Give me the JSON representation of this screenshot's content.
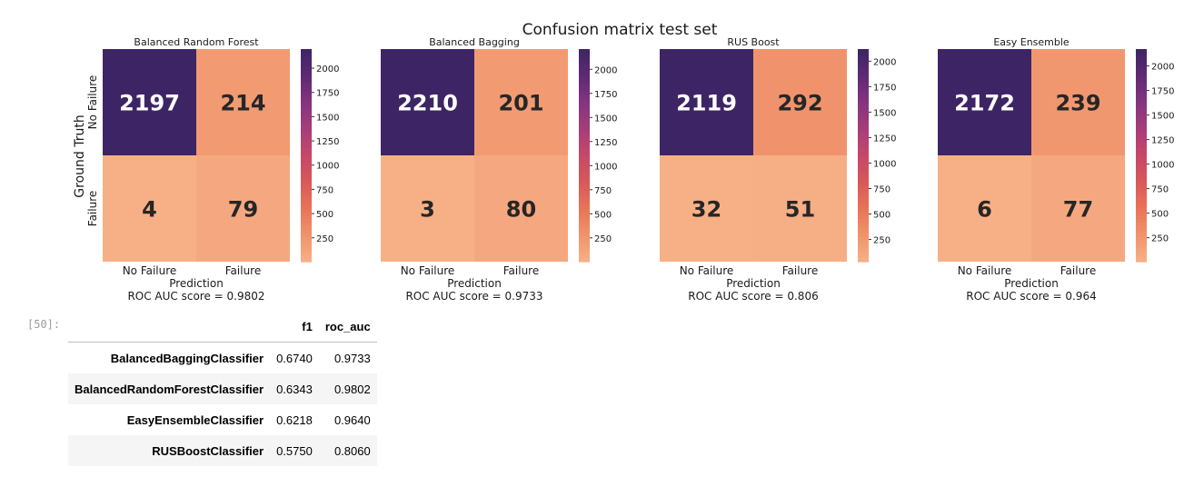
{
  "figure_title": "Confusion matrix test set",
  "chart_data": {
    "type": "heatmap",
    "ylabel": "Ground Truth",
    "xlabel": "Prediction",
    "row_labels": [
      "No Failure",
      "Failure"
    ],
    "col_labels": [
      "No Failure",
      "Failure"
    ],
    "colormap": [
      "#f7b086",
      "#f0936c",
      "#e97458",
      "#d95858",
      "#c6486a",
      "#a63d7a",
      "#84347f",
      "#5e2a73",
      "#3d2565"
    ],
    "panels": [
      {
        "title": "Balanced Random Forest",
        "matrix": [
          [
            2197,
            214
          ],
          [
            4,
            79
          ]
        ],
        "vmin": 4,
        "vmax": 2197,
        "colorbar_ticks": [
          250,
          500,
          750,
          1000,
          1250,
          1500,
          1750,
          2000
        ],
        "roc_label": "ROC AUC score = 0.9802"
      },
      {
        "title": "Balanced Bagging",
        "matrix": [
          [
            2210,
            201
          ],
          [
            3,
            80
          ]
        ],
        "vmin": 3,
        "vmax": 2210,
        "colorbar_ticks": [
          250,
          500,
          750,
          1000,
          1250,
          1500,
          1750,
          2000
        ],
        "roc_label": "ROC AUC score = 0.9733"
      },
      {
        "title": "RUS Boost",
        "matrix": [
          [
            2119,
            292
          ],
          [
            32,
            51
          ]
        ],
        "vmin": 32,
        "vmax": 2119,
        "colorbar_ticks": [
          250,
          500,
          750,
          1000,
          1250,
          1500,
          1750,
          2000
        ],
        "roc_label": "ROC AUC score = 0.806"
      },
      {
        "title": "Easy Ensemble",
        "matrix": [
          [
            2172,
            239
          ],
          [
            6,
            77
          ]
        ],
        "vmin": 6,
        "vmax": 2172,
        "colorbar_ticks": [
          250,
          500,
          750,
          1000,
          1250,
          1500,
          1750,
          2000
        ],
        "roc_label": "ROC AUC score = 0.964"
      }
    ]
  },
  "notebook": {
    "prompt": "[50]:"
  },
  "table": {
    "columns": [
      "",
      "f1",
      "roc_auc"
    ],
    "rows": [
      {
        "name": "BalancedBaggingClassifier",
        "f1": "0.6740",
        "roc_auc": "0.9733"
      },
      {
        "name": "BalancedRandomForestClassifier",
        "f1": "0.6343",
        "roc_auc": "0.9802"
      },
      {
        "name": "EasyEnsembleClassifier",
        "f1": "0.6218",
        "roc_auc": "0.9640"
      },
      {
        "name": "RUSBoostClassifier",
        "f1": "0.5750",
        "roc_auc": "0.8060"
      }
    ]
  }
}
